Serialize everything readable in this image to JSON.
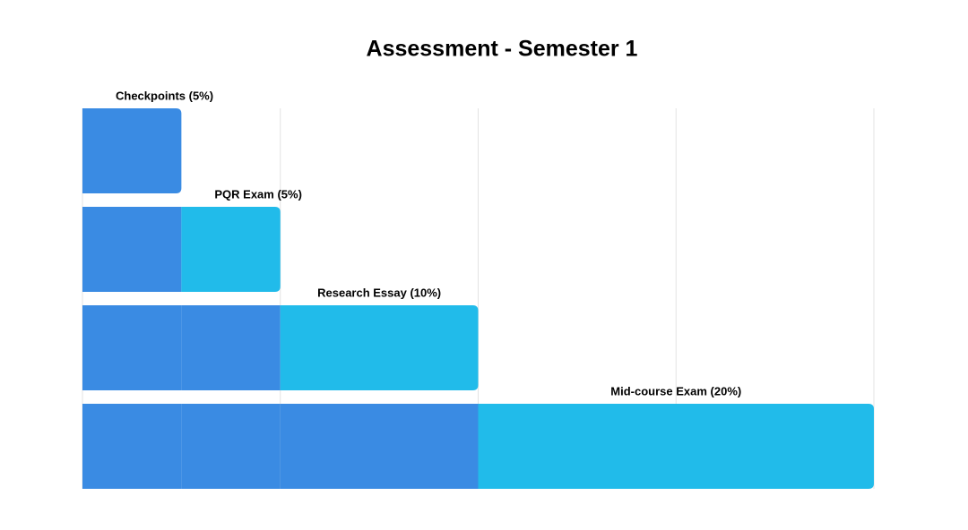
{
  "chart_data": {
    "type": "waterfall",
    "title": "Assessment - Semester 1",
    "categories": [
      "Checkpoints (5%)",
      "PQR Exam (5%)",
      "Research Essay (10%)",
      "Mid-course Exam (20%)"
    ],
    "values": [
      5,
      5,
      10,
      20
    ],
    "base_color": "#3a8be3",
    "color": "#21bbea",
    "xlim": [
      0,
      40
    ],
    "xticks": [
      0,
      10,
      20,
      30,
      40
    ],
    "grid": true
  }
}
